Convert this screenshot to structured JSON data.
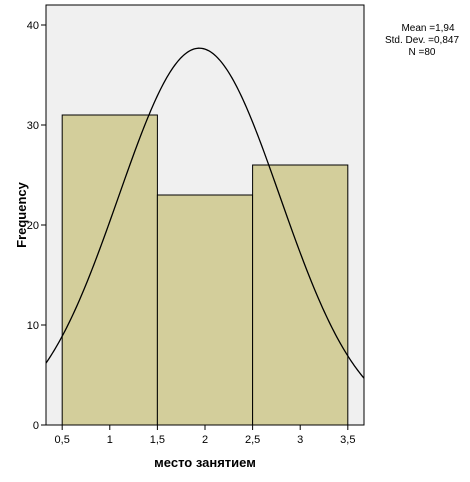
{
  "chart_data": {
    "type": "bar",
    "subtype": "histogram",
    "bins": [
      {
        "from": 0.5,
        "to": 1.5,
        "value": 31
      },
      {
        "from": 1.5,
        "to": 2.5,
        "value": 23
      },
      {
        "from": 2.5,
        "to": 3.5,
        "value": 26
      }
    ],
    "xlabel": "место занятием",
    "ylabel": "Frequency",
    "xlim": [
      0.33,
      3.67
    ],
    "ylim": [
      0,
      42
    ],
    "xticks": [
      "0,5",
      "1",
      "1,5",
      "2",
      "2,5",
      "3",
      "3,5"
    ],
    "xtick_values": [
      0.5,
      1,
      1.5,
      2,
      2.5,
      3,
      3.5
    ],
    "yticks": [
      "0",
      "10",
      "20",
      "30",
      "40"
    ],
    "ytick_values": [
      0,
      10,
      20,
      30,
      40
    ],
    "normal_curve": {
      "mean": 1.94,
      "std": 0.847,
      "n": 80,
      "bin_width": 1
    },
    "grid": false,
    "colors": {
      "plot_background": "#f0f0f0",
      "bar_fill": "#d3ce9b",
      "bar_stroke": "#000000",
      "curve": "#000000"
    },
    "stats_box": {
      "mean_line": "Mean =1,94",
      "std_line": "Std. Dev. =0,847",
      "n_line": "N =80"
    }
  }
}
